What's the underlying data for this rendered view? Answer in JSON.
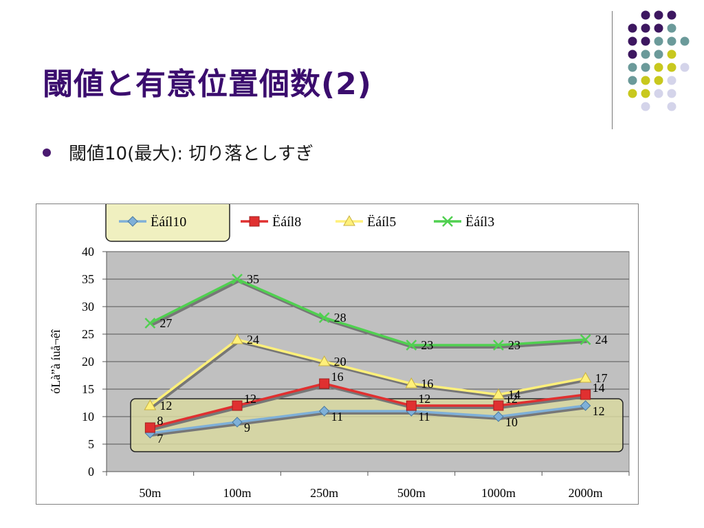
{
  "slide": {
    "title": "閾値と有意位置個数(2)",
    "bullet": "閾値10(最大): 切り落としすぎ"
  },
  "colors": {
    "title": "#3b0d6e",
    "plot_bg": "#c0c0c0",
    "highlight_fill": "#d8d8a0",
    "legend_fill": "#f0f0c0",
    "dot_purple": "#3d1760",
    "dot_teal": "#6b9a9a",
    "dot_yellow": "#c8c81e",
    "dot_lavender": "#d4d4ea"
  },
  "chart_data": {
    "type": "line",
    "categories": [
      "50m",
      "100m",
      "250m",
      "500m",
      "1000m",
      "2000m"
    ],
    "series": [
      {
        "name": "Ëáíl10",
        "values": [
          7,
          9,
          11,
          11,
          10,
          12
        ],
        "color": "#7fb0d8",
        "marker": "diamond"
      },
      {
        "name": "Ëáíl8",
        "values": [
          8,
          12,
          16,
          12,
          12,
          14
        ],
        "color": "#e03030",
        "marker": "square"
      },
      {
        "name": "Ëáíl5",
        "values": [
          12,
          24,
          20,
          16,
          14,
          17
        ],
        "color": "#fff07a",
        "marker": "triangle"
      },
      {
        "name": "Ëáíl3",
        "values": [
          27,
          35,
          28,
          23,
          23,
          24
        ],
        "color": "#50d050",
        "marker": "x"
      }
    ],
    "ylabel": "óLà”à íuå¬êî",
    "xlabel": "",
    "ylim": [
      0,
      40
    ],
    "yticks": [
      0,
      5,
      10,
      15,
      20,
      25,
      30,
      35,
      40
    ],
    "grid": true,
    "legend_position": "top"
  }
}
